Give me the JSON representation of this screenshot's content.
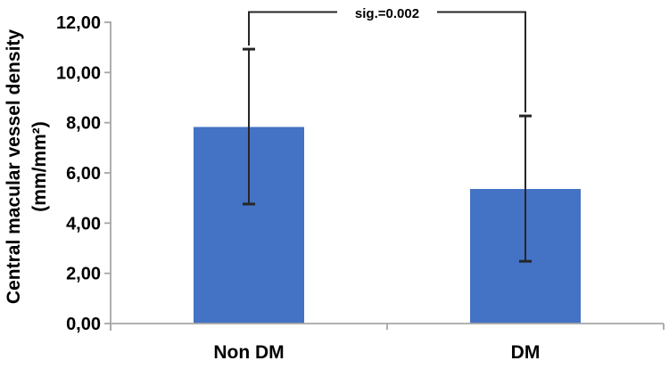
{
  "figure": {
    "background": "#ffffff"
  },
  "chart_data": {
    "type": "bar",
    "title": "",
    "categories": [
      "Non DM",
      "DM"
    ],
    "values": [
      7.83,
      5.36
    ],
    "error_low": [
      4.76,
      2.48
    ],
    "error_high": [
      10.93,
      8.27
    ],
    "annotation": {
      "text": "sig.=0.002",
      "connects": [
        "Non DM",
        "DM"
      ]
    },
    "ylabel": "Central macular vessel density (mm/mm²)",
    "ylabel_lines": [
      "Central macular vessel density",
      "(mm/mm²)"
    ],
    "yticks": [
      "0,00",
      "2,00",
      "4,00",
      "6,00",
      "8,00",
      "10,00",
      "12,00"
    ],
    "ytick_values": [
      0,
      2,
      4,
      6,
      8,
      10,
      12
    ],
    "ylim": [
      0,
      12
    ],
    "xlabel": "",
    "grid": false,
    "legend": null,
    "colors": {
      "bar": "#4472C4",
      "axis": "#A6A6A6",
      "error": "#262626",
      "text": "#000000"
    }
  }
}
